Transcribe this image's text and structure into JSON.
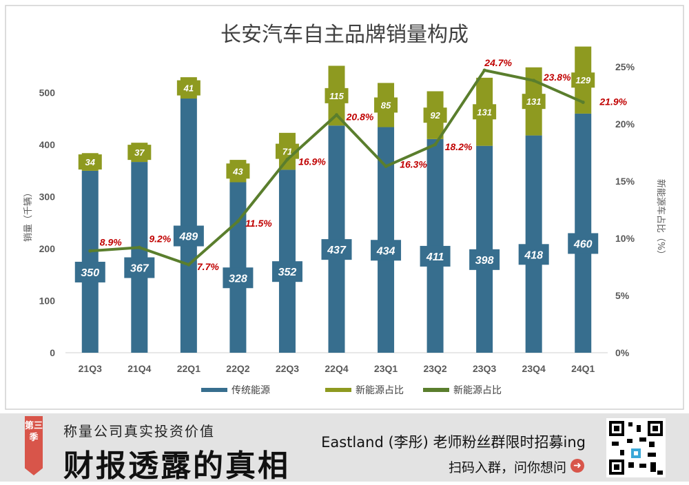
{
  "chart_data": {
    "type": "bar",
    "title": "长安汽车自主品牌销量构成",
    "categories": [
      "21Q3",
      "21Q4",
      "22Q1",
      "22Q2",
      "22Q3",
      "22Q4",
      "23Q1",
      "23Q2",
      "23Q3",
      "23Q4",
      "24Q1"
    ],
    "series": [
      {
        "name": "传统能源",
        "type": "stacked-bar",
        "axis": "left",
        "color": "#376e8e",
        "values": [
          350,
          367,
          489,
          328,
          352,
          437,
          434,
          411,
          398,
          418,
          460
        ]
      },
      {
        "name": "新能源占比",
        "type": "stacked-bar",
        "axis": "left",
        "color": "#8e9a20",
        "values": [
          34,
          37,
          41,
          43,
          71,
          115,
          85,
          92,
          131,
          131,
          129
        ]
      },
      {
        "name": "新能源占比",
        "type": "line",
        "axis": "right",
        "color": "#5a7e2d",
        "values": [
          8.9,
          9.2,
          7.7,
          11.5,
          16.9,
          20.8,
          16.3,
          18.2,
          24.7,
          23.8,
          21.9
        ],
        "labels": [
          "8.9%",
          "9.2%",
          "7.7%",
          "11.5%",
          "16.9%",
          "20.8%",
          "16.3%",
          "18.2%",
          "24.7%",
          "23.8%",
          "21.9%"
        ]
      }
    ],
    "ylabel": "销量（千辆）",
    "y2label": "新能源车占比（%）",
    "ylim": [
      0,
      550
    ],
    "yticks": [
      0,
      100,
      200,
      300,
      400,
      500
    ],
    "y2lim": [
      0,
      25
    ],
    "y2ticks": [
      "0%",
      "5%",
      "10%",
      "15%",
      "20%",
      "25%"
    ],
    "y2tick_values": [
      0,
      5,
      10,
      15,
      20,
      25
    ],
    "grid": false,
    "legend_position": "bottom",
    "colors": {
      "traditional": "#376e8e",
      "nev": "#8e9a20",
      "line": "#5a7e2d",
      "pct_label": "#c00000"
    }
  },
  "footer": {
    "badge": "第三季",
    "tagline_small": "称量公司真实投资价值",
    "tagline_big": "财报透露的真相",
    "promo_line1": "Eastland (李彤) 老师粉丝群限时招募ing",
    "promo_line2": "扫码入群，问你想问",
    "arrow_icon": "➜"
  }
}
